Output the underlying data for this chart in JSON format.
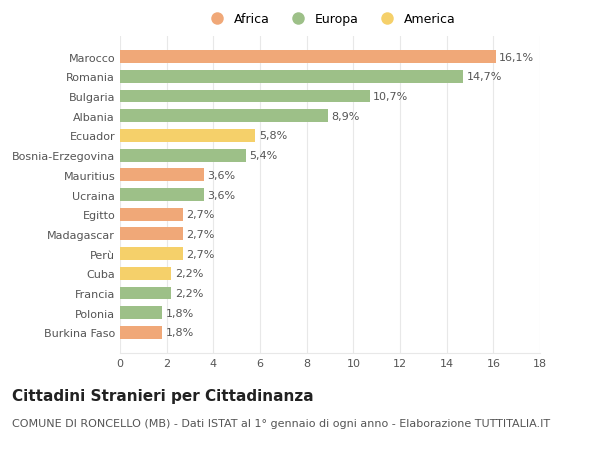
{
  "categories": [
    "Burkina Faso",
    "Polonia",
    "Francia",
    "Cuba",
    "Perù",
    "Madagascar",
    "Egitto",
    "Ucraina",
    "Mauritius",
    "Bosnia-Erzegovina",
    "Ecuador",
    "Albania",
    "Bulgaria",
    "Romania",
    "Marocco"
  ],
  "values": [
    1.8,
    1.8,
    2.2,
    2.2,
    2.7,
    2.7,
    2.7,
    3.6,
    3.6,
    5.4,
    5.8,
    8.9,
    10.7,
    14.7,
    16.1
  ],
  "labels": [
    "1,8%",
    "1,8%",
    "2,2%",
    "2,2%",
    "2,7%",
    "2,7%",
    "2,7%",
    "3,6%",
    "3,6%",
    "5,4%",
    "5,8%",
    "8,9%",
    "10,7%",
    "14,7%",
    "16,1%"
  ],
  "colors": [
    "#f0a878",
    "#9dc088",
    "#9dc088",
    "#f5d06a",
    "#f5d06a",
    "#f0a878",
    "#f0a878",
    "#9dc088",
    "#f0a878",
    "#9dc088",
    "#f5d06a",
    "#9dc088",
    "#9dc088",
    "#9dc088",
    "#f0a878"
  ],
  "legend_labels": [
    "Africa",
    "Europa",
    "America"
  ],
  "legend_colors": [
    "#f0a878",
    "#9dc088",
    "#f5d06a"
  ],
  "title": "Cittadini Stranieri per Cittadinanza",
  "subtitle": "COMUNE DI RONCELLO (MB) - Dati ISTAT al 1° gennaio di ogni anno - Elaborazione TUTTITALIA.IT",
  "xlim": [
    0,
    18
  ],
  "xticks": [
    0,
    2,
    4,
    6,
    8,
    10,
    12,
    14,
    16,
    18
  ],
  "background_color": "#ffffff",
  "grid_color": "#e8e8e8",
  "bar_height": 0.65,
  "title_fontsize": 11,
  "subtitle_fontsize": 8,
  "label_fontsize": 8,
  "tick_fontsize": 8,
  "legend_fontsize": 9
}
